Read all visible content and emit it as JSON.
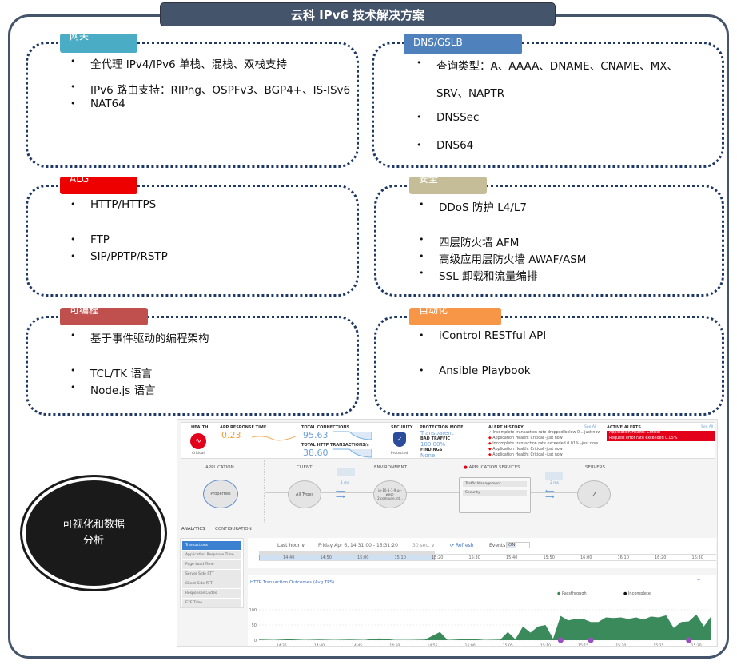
{
  "title": "云科 IPv6 技术解决方案",
  "colors": {
    "frame": "#44546a",
    "dotted_border": "#1f3864"
  },
  "sections": [
    {
      "tag": "网关",
      "tag_color": "#4bacc6",
      "items": [
        "全代理 IPv4/IPv6 单栈、混栈、双栈支持",
        "IPv6 路由支持：RIPng、OSPFv3、BGP4+、IS-ISv6",
        "NAT64"
      ]
    },
    {
      "tag": "DNS/GSLB",
      "tag_color": "#4f81bd",
      "items": [
        "查询类型：A、AAAA、DNAME、CNAME、MX、",
        "SRV、NAPTR",
        "DNSSec",
        "DNS64"
      ]
    },
    {
      "tag": "ALG",
      "tag_color": "#ee0000",
      "items": [
        "HTTP/HTTPS",
        "FTP",
        "SIP/PPTP/RSTP"
      ]
    },
    {
      "tag": "安全",
      "tag_color": "#c4bd97",
      "items": [
        "DDoS 防护 L4/L7",
        "四层防火墙 AFM",
        "高级应用层防火墙 AWAF/ASM",
        "SSL 卸载和流量编排"
      ]
    },
    {
      "tag": "可编程",
      "tag_color": "#c0504d",
      "items": [
        "基于事件驱动的编程架构",
        "TCL/TK 语言",
        "Node.js 语言"
      ]
    },
    {
      "tag": "自动化",
      "tag_color": "#f79646",
      "items": [
        "iControl RESTful API",
        "Ansible Playbook"
      ]
    }
  ],
  "oval_text": "可视化和数据分析",
  "dashboard": {
    "health": {
      "label": "HEALTH",
      "status": "Critical"
    },
    "app_response": {
      "label": "APP RESPONSE TIME",
      "value": "0.23"
    },
    "connections": {
      "label": "TOTAL CONNECTIONS",
      "value": "95.63",
      "http_label": "TOTAL HTTP TRANSACTIONS/s",
      "http_value": "38.60"
    },
    "security": {
      "label": "SECURITY",
      "status": "Protected"
    },
    "protection": {
      "mode_label": "PROTECTION MODE",
      "mode": "Transparent",
      "bad_label": "BAD TRAFFIC",
      "bad": "100.00%",
      "findings_label": "FINDINGS",
      "findings": "None"
    },
    "alert_history": {
      "label": "ALERT HISTORY",
      "see_all": "See All",
      "items": [
        "Incomplete transaction rate dropped below 0....just now",
        "Application Health: Critical -just now",
        "Incomplete transaction rate exceeded 0.01% -just now",
        "Application Health: Critical -just now",
        "Application Health: Critical -just now"
      ]
    },
    "active_alerts": {
      "label": "ACTIVE ALERTS",
      "see_all": "See All",
      "items": [
        "Application Health: Critical",
        "Request error rate exceeded 0.05%"
      ]
    },
    "flow": {
      "application": "APPLICATION",
      "properties": "Properties",
      "client": "CLIENT",
      "all_types": "All Types",
      "client_latency": "1 ms",
      "environment": "ENVIRONMENT",
      "env_node": "ip-10-1-1-9.us-west-2.compute.int...",
      "app_services": "APPLICATION SERVICES",
      "services": [
        "Traffic Management",
        "Security"
      ],
      "server_latency": "2 ms",
      "servers": "SERVERS",
      "server_count": "2"
    },
    "tabs": [
      "ANALYTICS",
      "CONFIGURATION"
    ],
    "menu": [
      "Transactions",
      "Application Response Time",
      "Page Load Time",
      "Server Side RTT",
      "Client Side RTT",
      "Responses Codes",
      "E2E Time"
    ],
    "timeline": {
      "range": "Last hour ∨",
      "date": "Friday Apr 6, 14:31:00 - 15:31:20",
      "interval": "30 sec. ∨",
      "refresh": "Refresh",
      "events_label": "Events:",
      "events_state": "ON",
      "ticks": [
        "14:40",
        "14:50",
        "15:00",
        "15:10",
        "15:20",
        "15:30",
        "15:40",
        "15:50",
        "16:00",
        "16:10",
        "16:20",
        "16:30"
      ]
    },
    "chart_title": "HTTP Transaction Outcomes (Avg TPS)"
  },
  "chart_data": {
    "type": "area",
    "title": "HTTP Transaction Outcomes (Avg TPS)",
    "legend": [
      "Passthrough",
      "Incomplete"
    ],
    "legend_placement": "top-right",
    "colors": {
      "Passthrough": "#3a8a5c",
      "Incomplete": "#111111"
    },
    "ylim": [
      0,
      100
    ],
    "yticks": [
      "0",
      "50",
      "100"
    ],
    "xticks": [
      "14:35",
      "14:40",
      "14:45",
      "14:50",
      "14:55",
      "15:00",
      "15:05",
      "15:10",
      "15:15",
      "15:20",
      "15:25",
      "15:30"
    ],
    "xrange_minutes": [
      "14:32",
      "15:32"
    ],
    "series": [
      {
        "name": "Passthrough",
        "minute_offsets_from_1432": [
          0,
          2,
          4,
          6,
          8,
          10,
          12,
          14,
          16,
          18,
          20,
          22,
          24,
          25,
          26,
          28,
          30,
          32,
          33,
          34,
          35,
          36,
          37,
          38,
          39,
          40,
          41,
          42,
          43,
          44,
          45,
          46,
          47,
          48,
          49,
          50,
          51,
          52,
          53,
          54,
          55,
          56,
          57,
          58,
          59,
          60
        ],
        "values": [
          2,
          1,
          3,
          1,
          2,
          1,
          2,
          1,
          6,
          1,
          1,
          2,
          27,
          1,
          2,
          4,
          1,
          2,
          27,
          3,
          45,
          25,
          45,
          50,
          5,
          80,
          65,
          70,
          70,
          60,
          60,
          75,
          73,
          75,
          70,
          75,
          68,
          78,
          75,
          82,
          40,
          60,
          62,
          85,
          45,
          80
        ]
      }
    ],
    "event_markers": [
      "15:12",
      "15:16",
      "15:29"
    ]
  }
}
